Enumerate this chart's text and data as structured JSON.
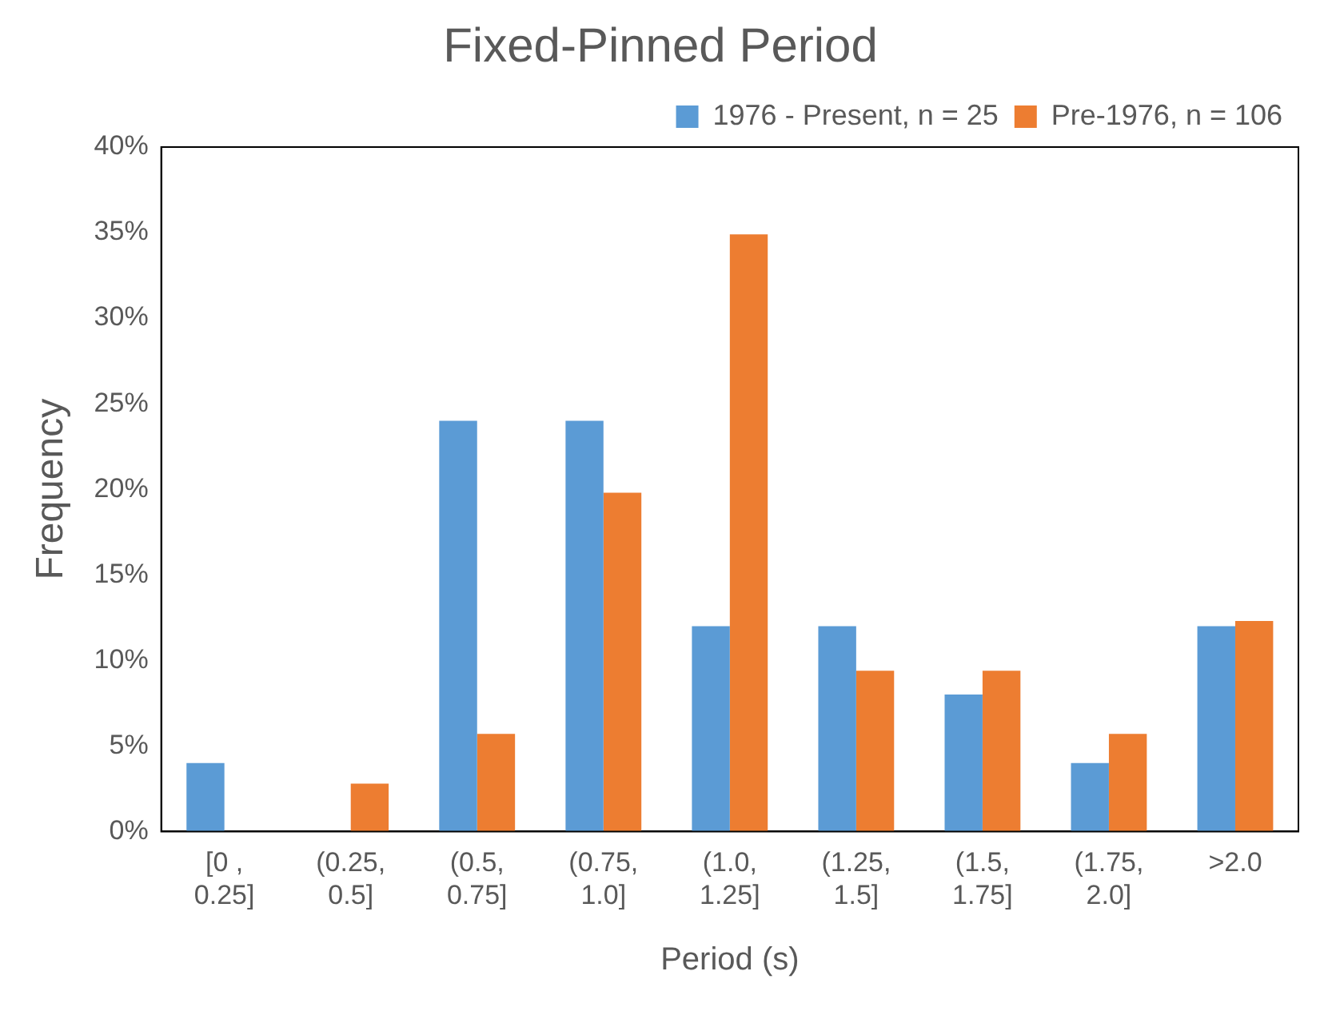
{
  "chart_data": {
    "type": "bar",
    "title": "Fixed-Pinned Period",
    "xlabel": "Period (s)",
    "ylabel": "Frequency",
    "categories": [
      "[0 , 0.25]",
      "(0.25, 0.5]",
      "(0.5, 0.75]",
      "(0.75, 1.0]",
      "(1.0, 1.25]",
      "(1.25, 1.5]",
      "(1.5, 1.75]",
      "(1.75, 2.0]",
      ">2.0"
    ],
    "series": [
      {
        "name": "1976 - Present, n = 25",
        "color": "#5b9bd5",
        "values": [
          4,
          0,
          24,
          24,
          12,
          12,
          8,
          4,
          12
        ]
      },
      {
        "name": "Pre-1976, n = 106",
        "color": "#ed7d31",
        "values": [
          0,
          2.8,
          5.7,
          19.8,
          34.9,
          9.4,
          9.4,
          5.7,
          12.3
        ]
      }
    ],
    "ylim": [
      0,
      40
    ],
    "yticks": [
      {
        "value": 0,
        "label": "0%"
      },
      {
        "value": 5,
        "label": "5%"
      },
      {
        "value": 10,
        "label": "10%"
      },
      {
        "value": 15,
        "label": "15%"
      },
      {
        "value": 20,
        "label": "20%"
      },
      {
        "value": 25,
        "label": "25%"
      },
      {
        "value": 30,
        "label": "30%"
      },
      {
        "value": 35,
        "label": "35%"
      },
      {
        "value": 40,
        "label": "40%"
      }
    ],
    "grid": false,
    "legend": "top right"
  }
}
